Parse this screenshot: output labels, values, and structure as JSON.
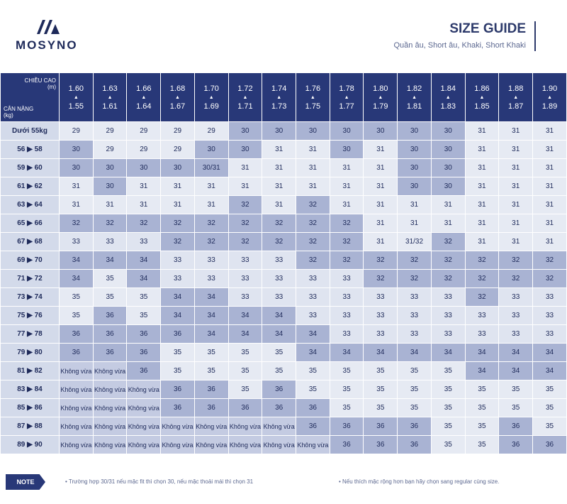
{
  "header": {
    "brand": "MOSYNO",
    "title": "SIZE GUIDE",
    "subtitle": "Quần âu, Short âu, Khaki, Short Khaki"
  },
  "table": {
    "corner": {
      "height_label": "CHIỀU CAO",
      "height_unit": "(m)",
      "weight_label": "CÂN NẶNG",
      "weight_unit": "(kg)"
    },
    "height_top": [
      "1.60",
      "1.63",
      "1.66",
      "1.68",
      "1.70",
      "1.72",
      "1.74",
      "1.76",
      "1.78",
      "1.80",
      "1.82",
      "1.84",
      "1.86",
      "1.88",
      "1.90"
    ],
    "height_bottom": [
      "1.55",
      "1.61",
      "1.64",
      "1.67",
      "1.69",
      "1.71",
      "1.73",
      "1.75",
      "1.77",
      "1.79",
      "1.81",
      "1.83",
      "1.85",
      "1.87",
      "1.89"
    ],
    "weights": [
      "Dưới 55kg",
      "56 ▶ 58",
      "59 ▶ 60",
      "61 ▶ 62",
      "63 ▶ 64",
      "65 ▶ 66",
      "67 ▶ 68",
      "69 ▶ 70",
      "71 ▶ 72",
      "73 ▶ 74",
      "75 ▶ 76",
      "77 ▶ 78",
      "79 ▶ 80",
      "81 ▶ 82",
      "83 ▶ 84",
      "85 ▶ 86",
      "87 ▶ 88",
      "89 ▶ 90"
    ],
    "rows": [
      [
        "29",
        "29",
        "29",
        "29",
        "29",
        "30",
        "30",
        "30",
        "30",
        "30",
        "30",
        "30",
        "31",
        "31",
        "31"
      ],
      [
        "30",
        "29",
        "29",
        "29",
        "30",
        "30",
        "31",
        "31",
        "30",
        "31",
        "30",
        "30",
        "31",
        "31",
        "31"
      ],
      [
        "30",
        "30",
        "30",
        "30",
        "30/31",
        "31",
        "31",
        "31",
        "31",
        "31",
        "30",
        "30",
        "31",
        "31",
        "31"
      ],
      [
        "31",
        "30",
        "31",
        "31",
        "31",
        "31",
        "31",
        "31",
        "31",
        "31",
        "30",
        "30",
        "31",
        "31",
        "31"
      ],
      [
        "31",
        "31",
        "31",
        "31",
        "31",
        "32",
        "31",
        "32",
        "31",
        "31",
        "31",
        "31",
        "31",
        "31",
        "31"
      ],
      [
        "32",
        "32",
        "32",
        "32",
        "32",
        "32",
        "32",
        "32",
        "32",
        "31",
        "31",
        "31",
        "31",
        "31",
        "31"
      ],
      [
        "33",
        "33",
        "33",
        "32",
        "32",
        "32",
        "32",
        "32",
        "32",
        "31",
        "31/32",
        "32",
        "31",
        "31",
        "31"
      ],
      [
        "34",
        "34",
        "34",
        "33",
        "33",
        "33",
        "33",
        "32",
        "32",
        "32",
        "32",
        "32",
        "32",
        "32",
        "32"
      ],
      [
        "34",
        "35",
        "34",
        "33",
        "33",
        "33",
        "33",
        "33",
        "33",
        "32",
        "32",
        "32",
        "32",
        "32",
        "32"
      ],
      [
        "35",
        "35",
        "35",
        "34",
        "34",
        "33",
        "33",
        "33",
        "33",
        "33",
        "33",
        "33",
        "32",
        "33",
        "33"
      ],
      [
        "35",
        "36",
        "35",
        "34",
        "34",
        "34",
        "34",
        "33",
        "33",
        "33",
        "33",
        "33",
        "33",
        "33",
        "33"
      ],
      [
        "36",
        "36",
        "36",
        "36",
        "34",
        "34",
        "34",
        "34",
        "33",
        "33",
        "33",
        "33",
        "33",
        "33",
        "33"
      ],
      [
        "36",
        "36",
        "36",
        "35",
        "35",
        "35",
        "35",
        "34",
        "34",
        "34",
        "34",
        "34",
        "34",
        "34",
        "34"
      ],
      [
        "Không vừa",
        "Không vừa",
        "36",
        "35",
        "35",
        "35",
        "35",
        "35",
        "35",
        "35",
        "35",
        "35",
        "34",
        "34",
        "34"
      ],
      [
        "Không vừa",
        "Không vừa",
        "Không vừa",
        "36",
        "36",
        "35",
        "36",
        "35",
        "35",
        "35",
        "35",
        "35",
        "35",
        "35",
        "35"
      ],
      [
        "Không vừa",
        "Không vừa",
        "Không vừa",
        "36",
        "36",
        "36",
        "36",
        "36",
        "35",
        "35",
        "35",
        "35",
        "35",
        "35",
        "35"
      ],
      [
        "Không vừa",
        "Không vừa",
        "Không vừa",
        "Không vừa",
        "Không vừa",
        "Không vừa",
        "Không vừa",
        "36",
        "36",
        "36",
        "36",
        "35",
        "35",
        "36",
        "35"
      ],
      [
        "Không vừa",
        "Không vừa",
        "Không vừa",
        "Không vừa",
        "Không vừa",
        "Không vừa",
        "Không vừa",
        "Không vừa",
        "36",
        "36",
        "36",
        "35",
        "35",
        "36",
        "36"
      ]
    ]
  },
  "note": {
    "label": "NOTE",
    "items": [
      "• Trường hợp 30/31 nếu mặc fit thì chọn 30, nếu mặc thoải mái thì chọn 31",
      "• Nếu thích mặc rộng hơn bạn hãy chọn sang regular cùng size."
    ]
  }
}
